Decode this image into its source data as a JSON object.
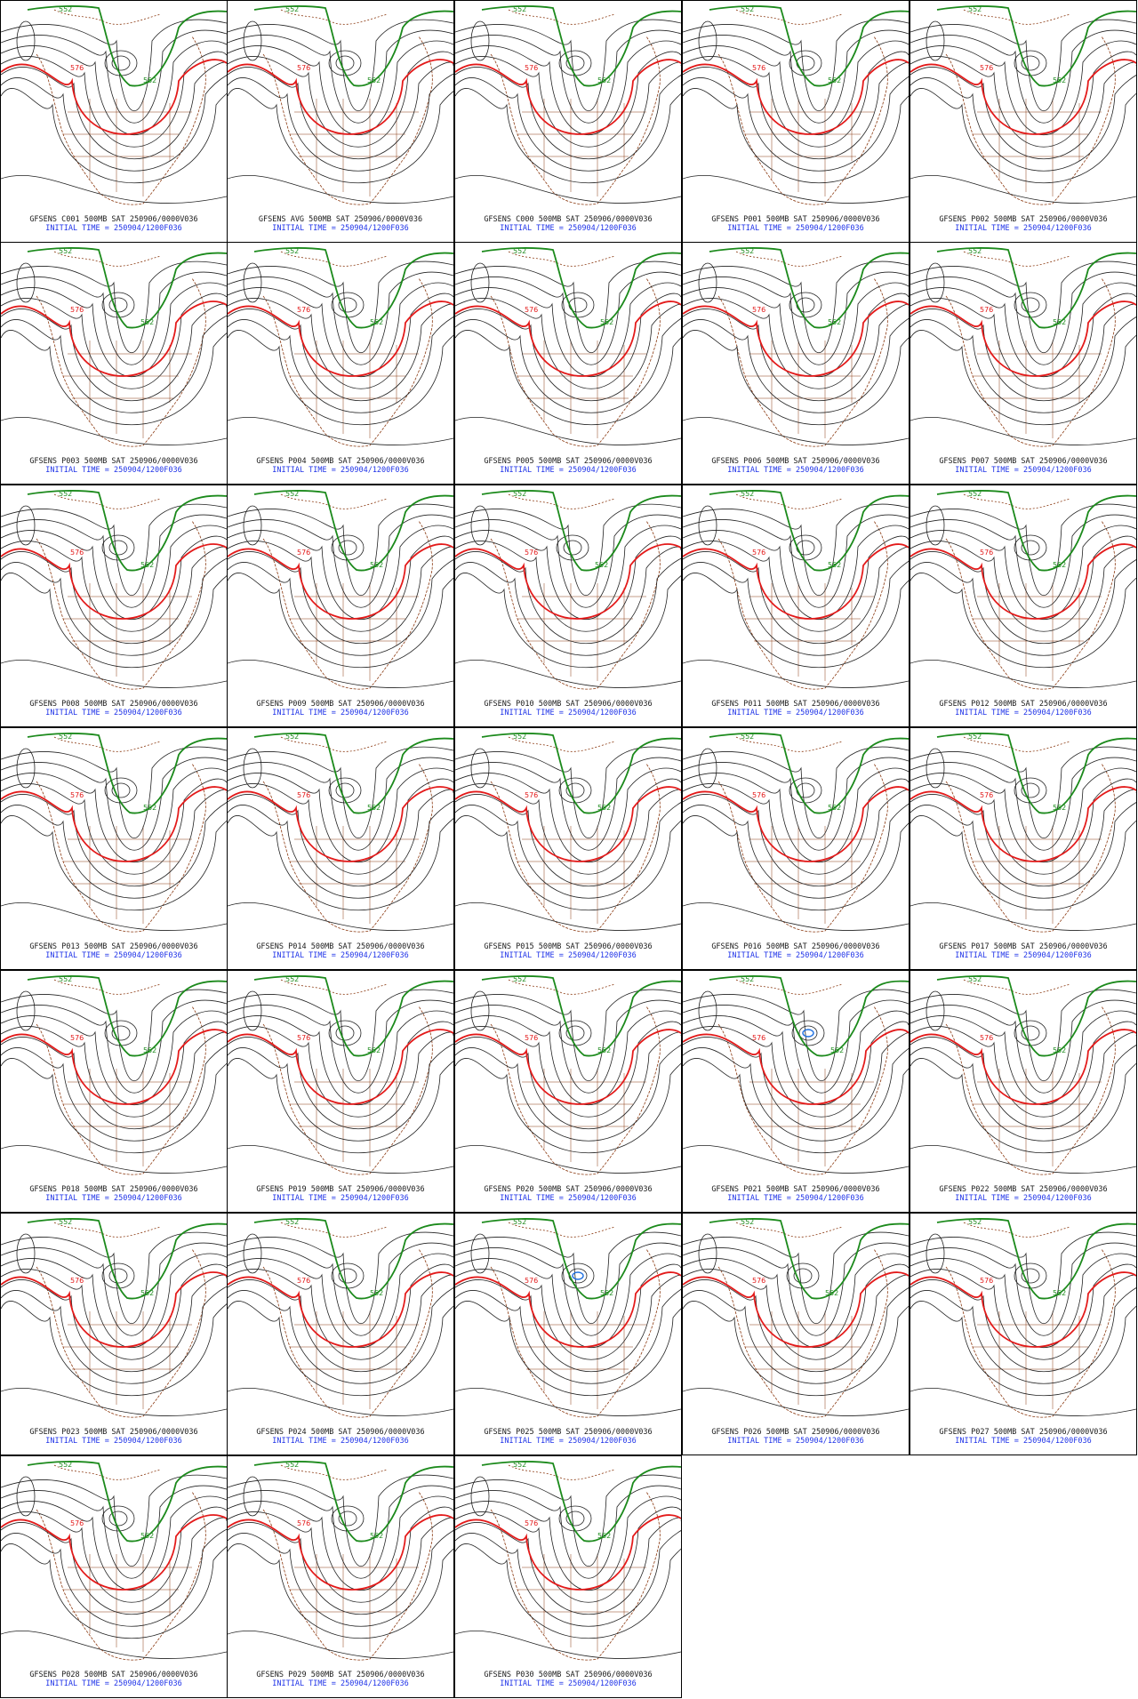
{
  "product": "500MB",
  "valid_label": "SAT 250906/0000V036",
  "initial_time": "INITIAL TIME = 250904/1200F036",
  "contour_labels": {
    "green": "552",
    "red": "576"
  },
  "colors": {
    "green": "#1c8a1c",
    "red": "#e31a1a",
    "black": "#222222",
    "coast": "#8b3a12",
    "blue": "#1e6fe0",
    "label_blue": "#1f33e8"
  },
  "members": [
    {
      "name": "GFSENS C001",
      "low": 0.55
    },
    {
      "name": "GFSENS AVG",
      "low": 0.5
    },
    {
      "name": "GFSENS C000",
      "low": 0.55
    },
    {
      "name": "GFSENS P001",
      "low": 0.6
    },
    {
      "name": "GFSENS P002",
      "low": 0.55
    },
    {
      "name": "GFSENS P003",
      "low": 0.5
    },
    {
      "name": "GFSENS P004",
      "low": 0.55
    },
    {
      "name": "GFSENS P005",
      "low": 0.6
    },
    {
      "name": "GFSENS P006",
      "low": 0.6
    },
    {
      "name": "GFSENS P007",
      "low": 0.55
    },
    {
      "name": "GFSENS P008",
      "low": 0.5
    },
    {
      "name": "GFSENS P009",
      "low": 0.55
    },
    {
      "name": "GFSENS P010",
      "low": 0.5
    },
    {
      "name": "GFSENS P011",
      "low": 0.6
    },
    {
      "name": "GFSENS P012",
      "low": 0.55
    },
    {
      "name": "GFSENS P013",
      "low": 0.55
    },
    {
      "name": "GFSENS P014",
      "low": 0.5
    },
    {
      "name": "GFSENS P015",
      "low": 0.55
    },
    {
      "name": "GFSENS P016",
      "low": 0.6
    },
    {
      "name": "GFSENS P017",
      "low": 0.55
    },
    {
      "name": "GFSENS P018",
      "low": 0.55
    },
    {
      "name": "GFSENS P019",
      "low": 0.5
    },
    {
      "name": "GFSENS P020",
      "low": 0.55
    },
    {
      "name": "GFSENS P021",
      "low": 0.65,
      "blue": true
    },
    {
      "name": "GFSENS P022",
      "low": 0.55
    },
    {
      "name": "GFSENS P023",
      "low": 0.5
    },
    {
      "name": "GFSENS P024",
      "low": 0.55
    },
    {
      "name": "GFSENS P025",
      "low": 0.6,
      "blue": true
    },
    {
      "name": "GFSENS P026",
      "low": 0.55
    },
    {
      "name": "GFSENS P027",
      "low": 0.55
    },
    {
      "name": "GFSENS P028",
      "low": 0.5
    },
    {
      "name": "GFSENS P029",
      "low": 0.55
    },
    {
      "name": "GFSENS P030",
      "low": 0.55
    }
  ]
}
